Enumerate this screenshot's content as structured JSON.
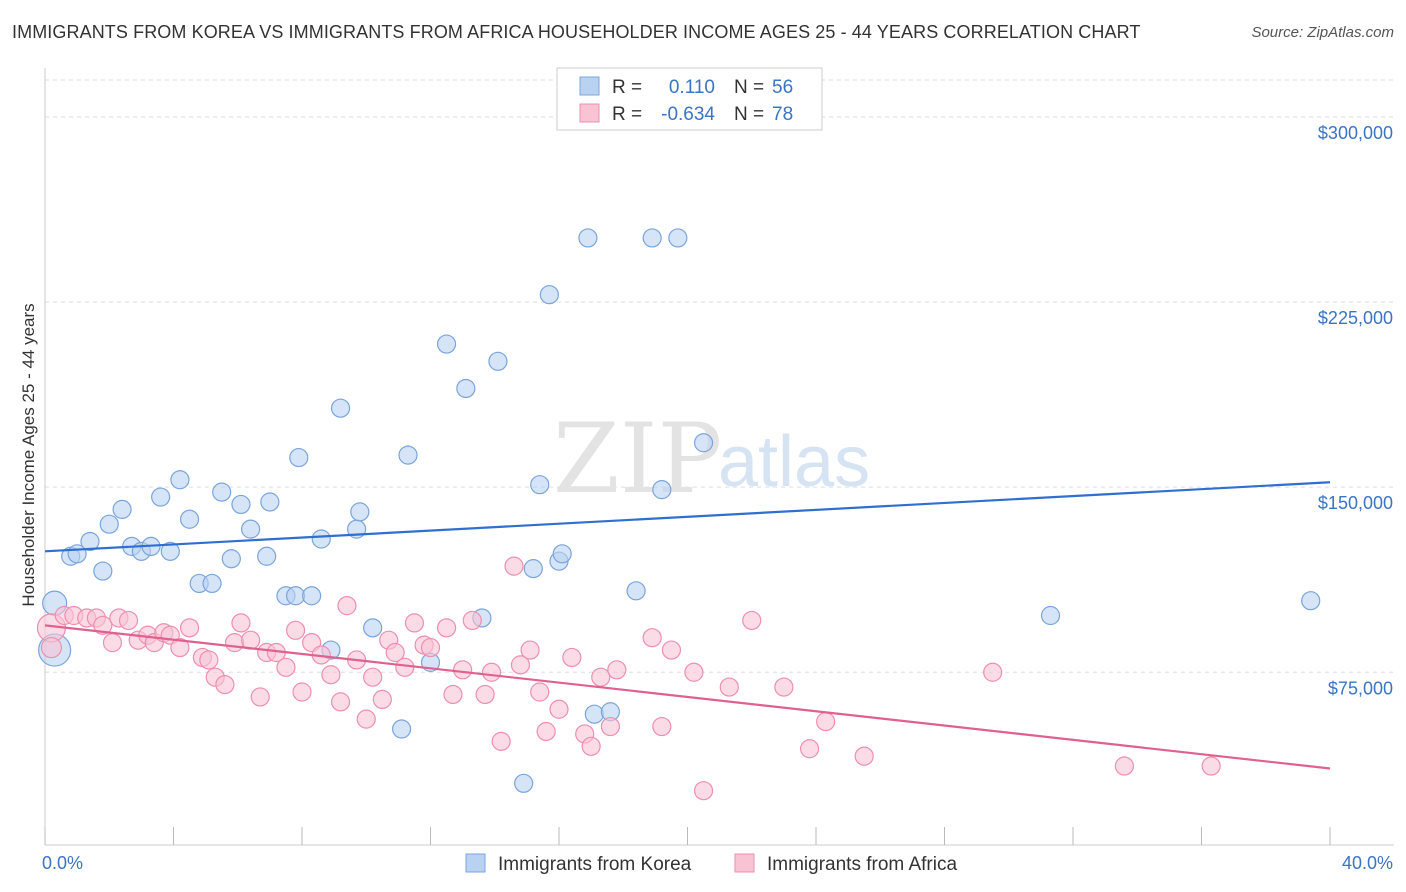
{
  "header": {
    "title": "IMMIGRANTS FROM KOREA VS IMMIGRANTS FROM AFRICA HOUSEHOLDER INCOME AGES 25 - 44 YEARS CORRELATION CHART",
    "source": "Source: ZipAtlas.com"
  },
  "watermark": {
    "zip": "ZIP",
    "atlas": "atlas"
  },
  "colors": {
    "korea_fill": "#b9d2f1",
    "korea_stroke": "#7aa5dc",
    "korea_line": "#2f6fd0",
    "africa_fill": "#f8c3d3",
    "africa_stroke": "#ee8fae",
    "africa_line": "#e0608f",
    "grid": "#dddddd",
    "axis_text": "#3a74c4"
  },
  "legend": {
    "r_label": "R =",
    "n_label": "N =",
    "rows": [
      {
        "r": "0.110",
        "n": "56",
        "series": "korea"
      },
      {
        "r": "-0.634",
        "n": "78",
        "series": "africa"
      }
    ]
  },
  "chart_data": {
    "type": "scatter",
    "title": "IMMIGRANTS FROM KOREA VS IMMIGRANTS FROM AFRICA HOUSEHOLDER INCOME AGES 25 - 44 YEARS CORRELATION CHART",
    "xlabel": "",
    "ylabel": "Householder Income Ages 25 - 44 years",
    "xlim": [
      0,
      40
    ],
    "ylim": [
      5000,
      315000
    ],
    "x_tick_labels": [
      "0.0%",
      "40.0%"
    ],
    "y_ticks": [
      75000,
      150000,
      225000,
      300000
    ],
    "y_tick_labels": [
      "$75,000",
      "$150,000",
      "$225,000",
      "$300,000"
    ],
    "legend_position": "top-center",
    "series": [
      {
        "name": "Immigrants from Korea",
        "key": "korea",
        "trend": {
          "x": [
            0,
            40
          ],
          "y": [
            124000,
            152000
          ]
        },
        "points": [
          {
            "x": 0.3,
            "y": 103000,
            "s": 12
          },
          {
            "x": 0.3,
            "y": 84000,
            "s": 16
          },
          {
            "x": 0.8,
            "y": 122000,
            "s": 9
          },
          {
            "x": 1.0,
            "y": 123000,
            "s": 9
          },
          {
            "x": 1.4,
            "y": 128000,
            "s": 9
          },
          {
            "x": 1.8,
            "y": 116000,
            "s": 9
          },
          {
            "x": 2.0,
            "y": 135000,
            "s": 9
          },
          {
            "x": 2.4,
            "y": 141000,
            "s": 9
          },
          {
            "x": 2.7,
            "y": 126000,
            "s": 9
          },
          {
            "x": 3.0,
            "y": 124000,
            "s": 9
          },
          {
            "x": 3.3,
            "y": 126000,
            "s": 9
          },
          {
            "x": 3.6,
            "y": 146000,
            "s": 9
          },
          {
            "x": 3.9,
            "y": 124000,
            "s": 9
          },
          {
            "x": 4.2,
            "y": 153000,
            "s": 9
          },
          {
            "x": 4.5,
            "y": 137000,
            "s": 9
          },
          {
            "x": 4.8,
            "y": 111000,
            "s": 9
          },
          {
            "x": 5.2,
            "y": 111000,
            "s": 9
          },
          {
            "x": 5.5,
            "y": 148000,
            "s": 9
          },
          {
            "x": 5.8,
            "y": 121000,
            "s": 9
          },
          {
            "x": 6.1,
            "y": 143000,
            "s": 9
          },
          {
            "x": 6.4,
            "y": 133000,
            "s": 9
          },
          {
            "x": 6.9,
            "y": 122000,
            "s": 9
          },
          {
            "x": 7.0,
            "y": 144000,
            "s": 9
          },
          {
            "x": 7.5,
            "y": 106000,
            "s": 9
          },
          {
            "x": 7.8,
            "y": 106000,
            "s": 9
          },
          {
            "x": 7.9,
            "y": 162000,
            "s": 9
          },
          {
            "x": 8.3,
            "y": 106000,
            "s": 9
          },
          {
            "x": 8.6,
            "y": 129000,
            "s": 9
          },
          {
            "x": 8.9,
            "y": 84000,
            "s": 9
          },
          {
            "x": 9.2,
            "y": 182000,
            "s": 9
          },
          {
            "x": 9.7,
            "y": 133000,
            "s": 9
          },
          {
            "x": 9.8,
            "y": 140000,
            "s": 9
          },
          {
            "x": 10.2,
            "y": 93000,
            "s": 9
          },
          {
            "x": 11.1,
            "y": 52000,
            "s": 9
          },
          {
            "x": 11.3,
            "y": 163000,
            "s": 9
          },
          {
            "x": 12.0,
            "y": 79000,
            "s": 9
          },
          {
            "x": 12.5,
            "y": 208000,
            "s": 9
          },
          {
            "x": 13.1,
            "y": 190000,
            "s": 9
          },
          {
            "x": 13.6,
            "y": 97000,
            "s": 9
          },
          {
            "x": 14.1,
            "y": 201000,
            "s": 9
          },
          {
            "x": 14.9,
            "y": 30000,
            "s": 9
          },
          {
            "x": 15.2,
            "y": 117000,
            "s": 9
          },
          {
            "x": 15.4,
            "y": 151000,
            "s": 9
          },
          {
            "x": 15.7,
            "y": 228000,
            "s": 9
          },
          {
            "x": 16.0,
            "y": 120000,
            "s": 9
          },
          {
            "x": 16.1,
            "y": 123000,
            "s": 9
          },
          {
            "x": 16.9,
            "y": 251000,
            "s": 9
          },
          {
            "x": 17.1,
            "y": 58000,
            "s": 9
          },
          {
            "x": 17.6,
            "y": 59000,
            "s": 9
          },
          {
            "x": 18.4,
            "y": 108000,
            "s": 9
          },
          {
            "x": 18.9,
            "y": 251000,
            "s": 9
          },
          {
            "x": 19.2,
            "y": 149000,
            "s": 9
          },
          {
            "x": 19.7,
            "y": 251000,
            "s": 9
          },
          {
            "x": 20.5,
            "y": 168000,
            "s": 9
          },
          {
            "x": 31.3,
            "y": 98000,
            "s": 9
          },
          {
            "x": 39.4,
            "y": 104000,
            "s": 9
          }
        ]
      },
      {
        "name": "Immigrants from Africa",
        "key": "africa",
        "trend": {
          "x": [
            0,
            40
          ],
          "y": [
            94000,
            36000
          ]
        },
        "points": [
          {
            "x": 0.2,
            "y": 93000,
            "s": 14
          },
          {
            "x": 0.2,
            "y": 85000,
            "s": 10
          },
          {
            "x": 0.6,
            "y": 98000,
            "s": 9
          },
          {
            "x": 0.9,
            "y": 98000,
            "s": 9
          },
          {
            "x": 1.3,
            "y": 97000,
            "s": 9
          },
          {
            "x": 1.6,
            "y": 97000,
            "s": 9
          },
          {
            "x": 1.8,
            "y": 94000,
            "s": 9
          },
          {
            "x": 2.1,
            "y": 87000,
            "s": 9
          },
          {
            "x": 2.3,
            "y": 97000,
            "s": 9
          },
          {
            "x": 2.6,
            "y": 96000,
            "s": 9
          },
          {
            "x": 2.9,
            "y": 88000,
            "s": 9
          },
          {
            "x": 3.2,
            "y": 90000,
            "s": 9
          },
          {
            "x": 3.4,
            "y": 87000,
            "s": 9
          },
          {
            "x": 3.7,
            "y": 91000,
            "s": 9
          },
          {
            "x": 3.9,
            "y": 90000,
            "s": 9
          },
          {
            "x": 4.2,
            "y": 85000,
            "s": 9
          },
          {
            "x": 4.5,
            "y": 93000,
            "s": 9
          },
          {
            "x": 4.9,
            "y": 81000,
            "s": 9
          },
          {
            "x": 5.1,
            "y": 80000,
            "s": 9
          },
          {
            "x": 5.3,
            "y": 73000,
            "s": 9
          },
          {
            "x": 5.6,
            "y": 70000,
            "s": 9
          },
          {
            "x": 5.9,
            "y": 87000,
            "s": 9
          },
          {
            "x": 6.1,
            "y": 95000,
            "s": 9
          },
          {
            "x": 6.4,
            "y": 88000,
            "s": 9
          },
          {
            "x": 6.7,
            "y": 65000,
            "s": 9
          },
          {
            "x": 6.9,
            "y": 83000,
            "s": 9
          },
          {
            "x": 7.2,
            "y": 83000,
            "s": 9
          },
          {
            "x": 7.5,
            "y": 77000,
            "s": 9
          },
          {
            "x": 7.8,
            "y": 92000,
            "s": 9
          },
          {
            "x": 8.0,
            "y": 67000,
            "s": 9
          },
          {
            "x": 8.3,
            "y": 87000,
            "s": 9
          },
          {
            "x": 8.6,
            "y": 82000,
            "s": 9
          },
          {
            "x": 8.9,
            "y": 74000,
            "s": 9
          },
          {
            "x": 9.2,
            "y": 63000,
            "s": 9
          },
          {
            "x": 9.4,
            "y": 102000,
            "s": 9
          },
          {
            "x": 9.7,
            "y": 80000,
            "s": 9
          },
          {
            "x": 10.0,
            "y": 56000,
            "s": 9
          },
          {
            "x": 10.2,
            "y": 73000,
            "s": 9
          },
          {
            "x": 10.5,
            "y": 64000,
            "s": 9
          },
          {
            "x": 10.7,
            "y": 88000,
            "s": 9
          },
          {
            "x": 10.9,
            "y": 83000,
            "s": 9
          },
          {
            "x": 11.2,
            "y": 77000,
            "s": 9
          },
          {
            "x": 11.5,
            "y": 95000,
            "s": 9
          },
          {
            "x": 11.8,
            "y": 86000,
            "s": 9
          },
          {
            "x": 12.0,
            "y": 85000,
            "s": 9
          },
          {
            "x": 12.5,
            "y": 93000,
            "s": 9
          },
          {
            "x": 12.7,
            "y": 66000,
            "s": 9
          },
          {
            "x": 13.0,
            "y": 76000,
            "s": 9
          },
          {
            "x": 13.3,
            "y": 96000,
            "s": 9
          },
          {
            "x": 13.7,
            "y": 66000,
            "s": 9
          },
          {
            "x": 13.9,
            "y": 75000,
            "s": 9
          },
          {
            "x": 14.2,
            "y": 47000,
            "s": 9
          },
          {
            "x": 14.6,
            "y": 118000,
            "s": 9
          },
          {
            "x": 14.8,
            "y": 78000,
            "s": 9
          },
          {
            "x": 15.1,
            "y": 84000,
            "s": 9
          },
          {
            "x": 15.4,
            "y": 67000,
            "s": 9
          },
          {
            "x": 15.6,
            "y": 51000,
            "s": 9
          },
          {
            "x": 16.0,
            "y": 60000,
            "s": 9
          },
          {
            "x": 16.4,
            "y": 81000,
            "s": 9
          },
          {
            "x": 16.8,
            "y": 50000,
            "s": 9
          },
          {
            "x": 17.0,
            "y": 45000,
            "s": 9
          },
          {
            "x": 17.3,
            "y": 73000,
            "s": 9
          },
          {
            "x": 17.6,
            "y": 53000,
            "s": 9
          },
          {
            "x": 17.8,
            "y": 76000,
            "s": 9
          },
          {
            "x": 18.9,
            "y": 89000,
            "s": 9
          },
          {
            "x": 19.2,
            "y": 53000,
            "s": 9
          },
          {
            "x": 19.5,
            "y": 84000,
            "s": 9
          },
          {
            "x": 20.2,
            "y": 75000,
            "s": 9
          },
          {
            "x": 20.5,
            "y": 27000,
            "s": 9
          },
          {
            "x": 21.3,
            "y": 69000,
            "s": 9
          },
          {
            "x": 22.0,
            "y": 96000,
            "s": 9
          },
          {
            "x": 23.0,
            "y": 69000,
            "s": 9
          },
          {
            "x": 23.8,
            "y": 44000,
            "s": 9
          },
          {
            "x": 24.3,
            "y": 55000,
            "s": 9
          },
          {
            "x": 25.5,
            "y": 41000,
            "s": 9
          },
          {
            "x": 29.5,
            "y": 75000,
            "s": 9
          },
          {
            "x": 33.6,
            "y": 37000,
            "s": 9
          },
          {
            "x": 36.3,
            "y": 37000,
            "s": 9
          }
        ]
      }
    ]
  }
}
